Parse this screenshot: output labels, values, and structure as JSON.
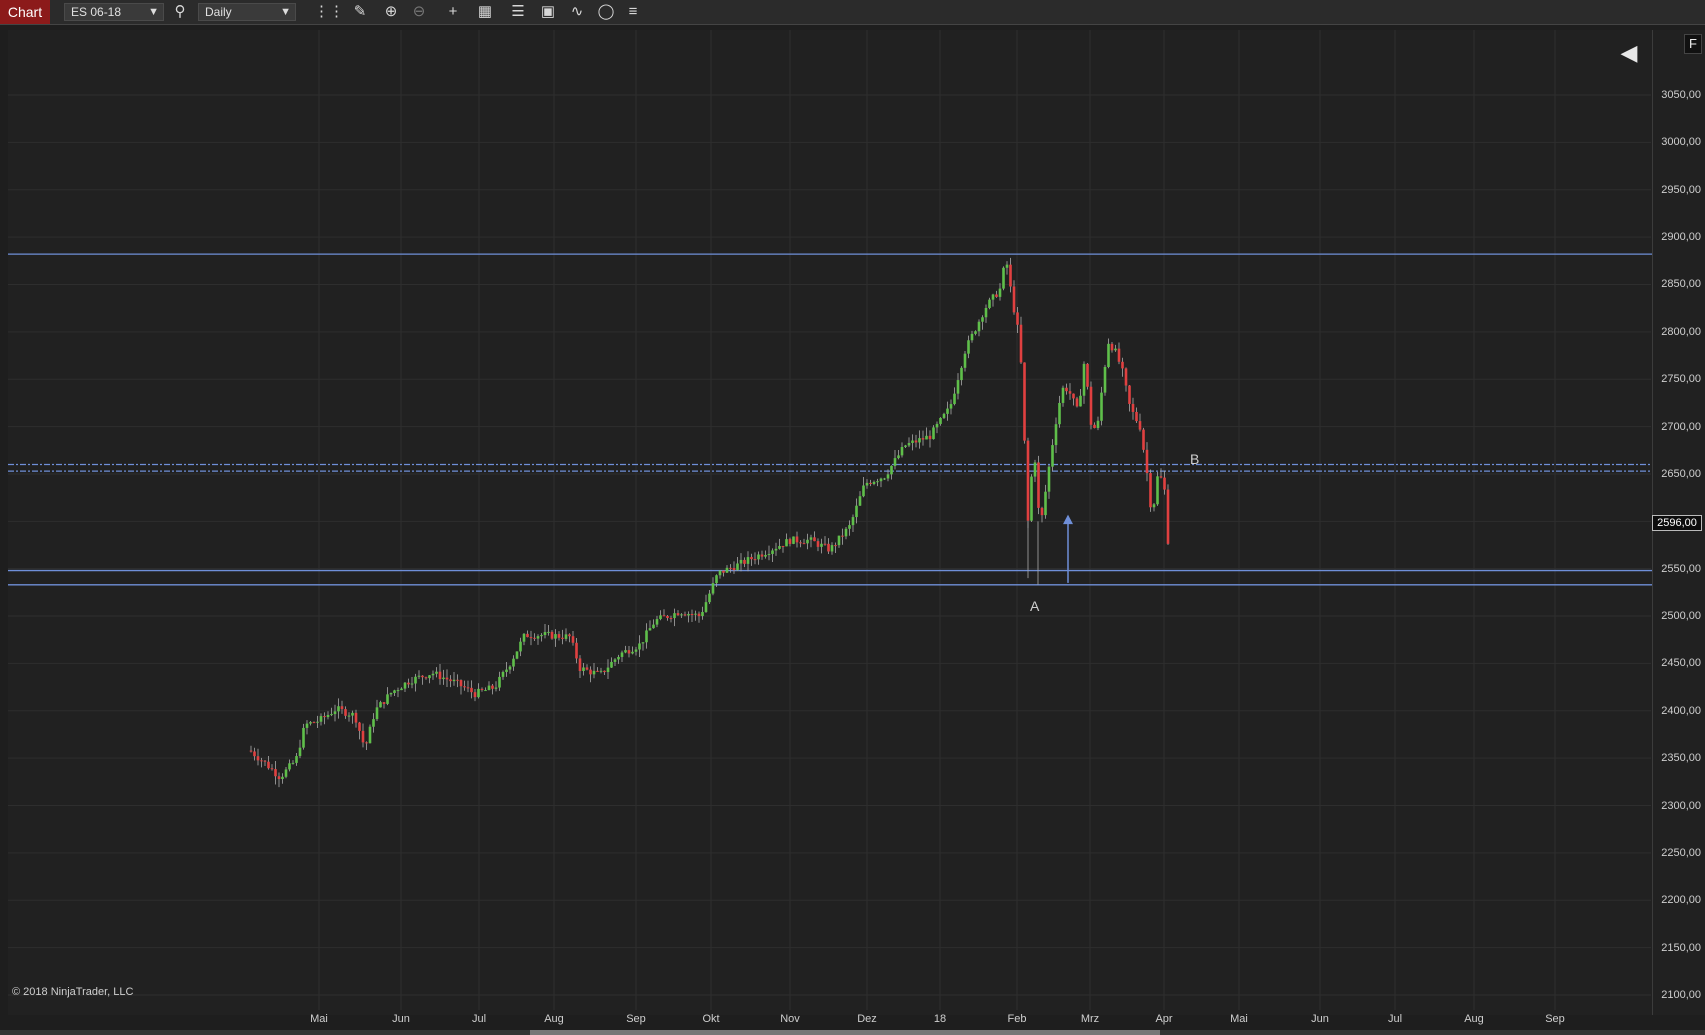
{
  "toolbar": {
    "tab_label": "Chart",
    "instrument": "ES 06-18",
    "interval": "Daily",
    "icons": [
      "search-icon",
      "bar-type-icon",
      "pencil-icon",
      "zoom-in-icon",
      "zoom-out-icon",
      "crosshair-icon",
      "properties-icon",
      "chart-trader-icon",
      "data-box-icon",
      "indicators-icon",
      "strategies-icon",
      "templates-icon"
    ]
  },
  "chart": {
    "copyright": "© 2018 NinjaTrader, LLC",
    "last_price_label": "2596,00",
    "annotation_a": "A",
    "annotation_b": "B",
    "panel_button": "F",
    "y_ticks": [
      "3050,00",
      "3000,00",
      "2950,00",
      "2900,00",
      "2850,00",
      "2800,00",
      "2750,00",
      "2700,00",
      "2650,00",
      "2600,00",
      "2550,00",
      "2500,00",
      "2450,00",
      "2400,00",
      "2350,00",
      "2300,00",
      "2250,00",
      "2200,00",
      "2150,00",
      "2100,00"
    ],
    "x_ticks": [
      "Mai",
      "Jun",
      "Jul",
      "Aug",
      "Sep",
      "Okt",
      "Nov",
      "Dez",
      "18",
      "Feb",
      "Mrz",
      "Apr",
      "Mai",
      "Jun",
      "Jul",
      "Aug",
      "Sep"
    ]
  },
  "chart_data": {
    "type": "line",
    "instrument": "ES 06-18",
    "interval": "Daily",
    "ylim": [
      2100,
      3050
    ],
    "horizontal_lines": [
      2882,
      2660,
      2653,
      2548,
      2533
    ],
    "last_price": 2596,
    "close_path": [
      [
        "Apr 2017",
        2355
      ],
      [
        "Mai 2017",
        2388
      ],
      [
        "Jun 2017",
        2432
      ],
      [
        "Jul 2017",
        2430
      ],
      [
        "Aug 2017",
        2470
      ],
      [
        "Sep 2017",
        2465
      ],
      [
        "Okt 2017",
        2545
      ],
      [
        "Nov 2017",
        2580
      ],
      [
        "Dez 2017",
        2650
      ],
      [
        "Jan 2018",
        2690
      ],
      [
        "Jan 26 2018",
        2872
      ],
      [
        "Feb 08 2018",
        2590
      ],
      [
        "Feb 26 2018",
        2780
      ],
      [
        "Mrz 08 2018",
        2785
      ],
      [
        "Apr 02 2018",
        2590
      ]
    ]
  }
}
